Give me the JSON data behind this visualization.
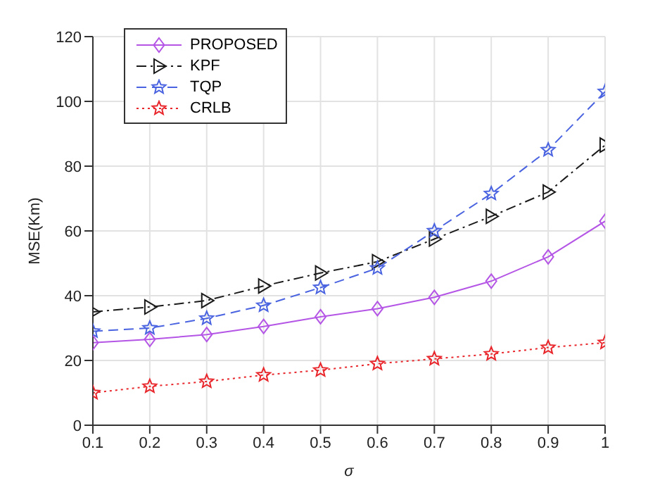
{
  "chart_data": {
    "type": "line",
    "xlabel": "σ",
    "ylabel": "MSE(Km)",
    "x": [
      0.1,
      0.2,
      0.3,
      0.4,
      0.5,
      0.6,
      0.7,
      0.8,
      0.9,
      1
    ],
    "series": [
      {
        "name": "PROPOSED",
        "color": "#b455e6",
        "marker": "diamond",
        "line_style": "solid",
        "values": [
          25.5,
          26.5,
          28,
          30.5,
          33.5,
          36,
          39.5,
          44.5,
          52,
          63
        ]
      },
      {
        "name": "KPF",
        "color": "#1a1a1a",
        "marker": "triangle",
        "line_style": "dashdot",
        "values": [
          35,
          36.5,
          38.5,
          43,
          47,
          50.5,
          57.5,
          64.5,
          72,
          86.5
        ]
      },
      {
        "name": "TQP",
        "color": "#4a63e0",
        "marker": "star",
        "line_style": "dashed",
        "values": [
          29,
          30,
          33,
          37,
          42.5,
          48.5,
          60,
          71.5,
          85,
          103
        ]
      },
      {
        "name": "CRLB",
        "color": "#e8262b",
        "marker": "star",
        "line_style": "dotted",
        "values": [
          10,
          12,
          13.5,
          15.5,
          17,
          19,
          20.5,
          22,
          24,
          25.5
        ]
      }
    ],
    "xlim": [
      0.1,
      1
    ],
    "xticks": [
      0.1,
      0.2,
      0.3,
      0.4,
      0.5,
      0.6,
      0.7,
      0.8,
      0.9,
      1
    ],
    "ylim": [
      0,
      120
    ],
    "yticks": [
      0,
      20,
      40,
      60,
      80,
      100,
      120
    ],
    "grid": true,
    "legend": "top left"
  }
}
